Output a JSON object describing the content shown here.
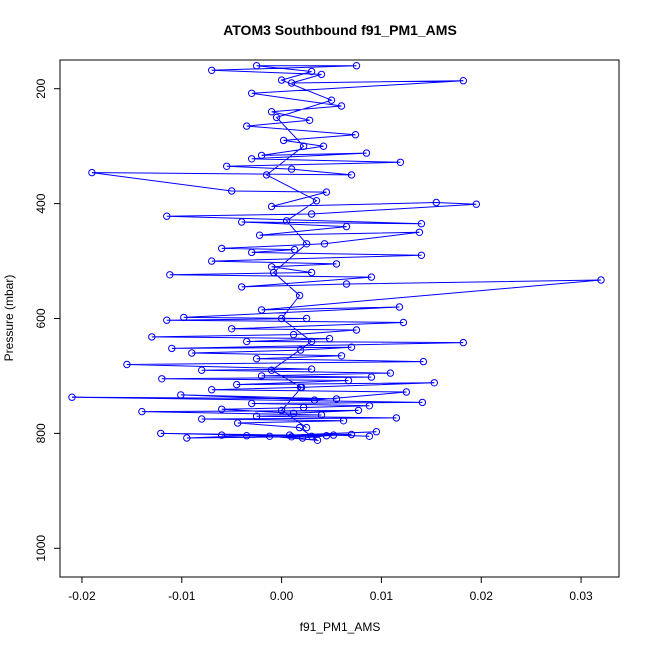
{
  "chart_data": {
    "type": "line",
    "title": "ATOM3 Southbound f91_PM1_AMS",
    "xlabel": "f91_PM1_AMS",
    "ylabel": "Pressure (mbar)",
    "xlim": [
      -0.0222,
      0.0338
    ],
    "ylim": [
      1050,
      150
    ],
    "y_reversed": true,
    "x_ticks": [
      -0.02,
      -0.01,
      0.0,
      0.01,
      0.02,
      0.03
    ],
    "x_tick_labels": [
      "-0.02",
      "-0.01",
      "0.00",
      "0.01",
      "0.02",
      "0.03"
    ],
    "y_ticks": [
      200,
      400,
      600,
      800,
      1000
    ],
    "y_tick_labels": [
      "200",
      "400",
      "600",
      "800",
      "1000"
    ],
    "series_color": "#0000ff",
    "marker": "open-circle",
    "series": [
      {
        "points": [
          [
            0.0088,
            805
          ],
          [
            0.0052,
            803
          ],
          [
            0.0021,
            808
          ],
          [
            -0.0035,
            804
          ],
          [
            -0.0095,
            808
          ],
          [
            0.001,
            806
          ],
          [
            0.0045,
            804
          ],
          [
            -0.006,
            803
          ],
          [
            0.007,
            802
          ],
          [
            0.003,
            805
          ],
          [
            -0.0121,
            800
          ],
          [
            0.0008,
            803
          ],
          [
            0.0095,
            797
          ],
          [
            -0.0012,
            805
          ],
          [
            0.0036,
            812
          ],
          [
            0.0018,
            790
          ],
          [
            -0.0044,
            782
          ],
          [
            0.0062,
            778
          ],
          [
            -0.008,
            775
          ],
          [
            0.0115,
            773
          ],
          [
            -0.0025,
            770
          ],
          [
            0.004,
            768
          ],
          [
            -0.014,
            762
          ],
          [
            0.0077,
            760
          ],
          [
            0.0012,
            765
          ],
          [
            -0.006,
            758
          ],
          [
            0.0022,
            755
          ],
          [
            0.0088,
            752
          ],
          [
            -0.003,
            748
          ],
          [
            0.0141,
            746
          ],
          [
            -0.021,
            737
          ],
          [
            0.0055,
            740
          ],
          [
            -0.0101,
            733
          ],
          [
            0.0033,
            742
          ],
          [
            0.0125,
            728
          ],
          [
            -0.007,
            724
          ],
          [
            0.0019,
            720
          ],
          [
            0.0153,
            712
          ],
          [
            -0.0045,
            715
          ],
          [
            0.0067,
            708
          ],
          [
            -0.012,
            705
          ],
          [
            0.009,
            702
          ],
          [
            -0.002,
            700
          ],
          [
            0.0109,
            695
          ],
          [
            -0.008,
            690
          ],
          [
            0.003,
            688
          ],
          [
            -0.0155,
            680
          ],
          [
            0.0142,
            675
          ],
          [
            -0.0025,
            670
          ],
          [
            0.006,
            665
          ],
          [
            -0.009,
            660
          ],
          [
            0.0019,
            655
          ],
          [
            0.007,
            650
          ],
          [
            -0.011,
            652
          ],
          [
            0.0182,
            642
          ],
          [
            -0.0035,
            640
          ],
          [
            0.0048,
            635
          ],
          [
            -0.013,
            632
          ],
          [
            0.0012,
            628
          ],
          [
            0.0075,
            620
          ],
          [
            -0.005,
            618
          ],
          [
            0.0122,
            607
          ],
          [
            -0.0115,
            603
          ],
          [
            0.0025,
            600
          ],
          [
            -0.0098,
            598
          ],
          [
            0.0118,
            580
          ],
          [
            -0.002,
            585
          ],
          [
            0.032,
            533
          ],
          [
            0.0065,
            540
          ],
          [
            -0.004,
            545
          ],
          [
            0.009,
            528
          ],
          [
            -0.0112,
            524
          ],
          [
            0.003,
            520
          ],
          [
            -0.001,
            510
          ],
          [
            0.0055,
            505
          ],
          [
            -0.007,
            500
          ],
          [
            0.014,
            490
          ],
          [
            -0.003,
            485
          ],
          [
            0.0013,
            480
          ],
          [
            -0.006,
            478
          ],
          [
            0.0043,
            470
          ],
          [
            0.0138,
            450
          ],
          [
            -0.0022,
            455
          ],
          [
            0.0065,
            440
          ],
          [
            -0.004,
            432
          ],
          [
            0.014,
            435
          ],
          [
            -0.0115,
            422
          ],
          [
            0.003,
            418
          ],
          [
            0.0195,
            401
          ],
          [
            0.0155,
            398
          ],
          [
            -0.001,
            405
          ],
          [
            0.0045,
            380
          ],
          [
            -0.005,
            378
          ],
          [
            -0.019,
            346
          ],
          [
            0.007,
            350
          ],
          [
            0.001,
            340
          ],
          [
            -0.0055,
            335
          ],
          [
            0.0119,
            328
          ],
          [
            -0.003,
            322
          ],
          [
            0.0085,
            312
          ],
          [
            -0.002,
            316
          ],
          [
            0.0042,
            300
          ],
          [
            0.0002,
            290
          ],
          [
            0.0074,
            280
          ],
          [
            -0.0035,
            265
          ],
          [
            0.0028,
            255
          ],
          [
            -0.001,
            240
          ],
          [
            0.006,
            230
          ],
          [
            -0.003,
            208
          ],
          [
            0.0182,
            186
          ],
          [
            0.001,
            190
          ],
          [
            0.004,
            175
          ],
          [
            -0.007,
            168
          ],
          [
            0.0075,
            160
          ],
          [
            -0.0025,
            160
          ],
          [
            0.003,
            170
          ],
          [
            0.0,
            185
          ],
          [
            0.005,
            220
          ],
          [
            -0.0005,
            250
          ],
          [
            0.0022,
            300
          ],
          [
            -0.0015,
            350
          ],
          [
            0.0035,
            395
          ],
          [
            0.0005,
            430
          ],
          [
            0.0025,
            470
          ],
          [
            -0.0008,
            520
          ],
          [
            0.0018,
            560
          ],
          [
            0.0,
            600
          ],
          [
            0.003,
            640
          ],
          [
            -0.001,
            690
          ],
          [
            0.002,
            720
          ],
          [
            0.0,
            760
          ],
          [
            0.0025,
            790
          ]
        ]
      }
    ]
  }
}
